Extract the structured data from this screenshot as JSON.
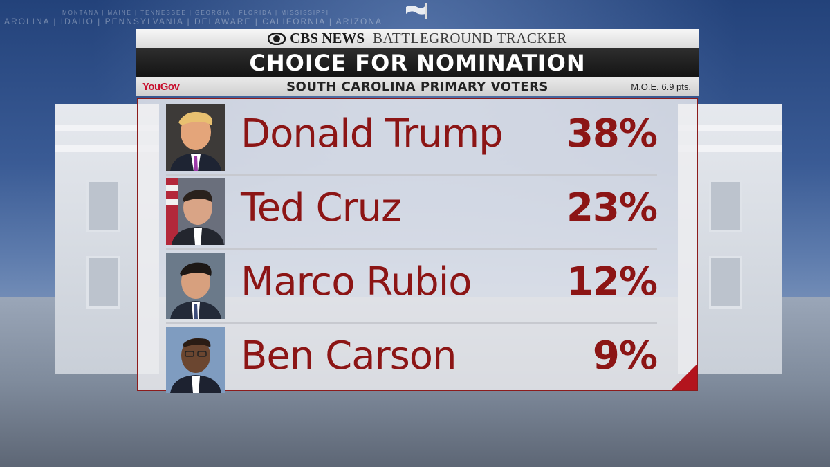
{
  "background": {
    "ticker_line1": "MONTANA | MAINE | TENNESSEE | GEORGIA | FLORIDA | MISSISSIPPI",
    "ticker_line2": "AROLINA | IDAHO | PENNSYLVANIA | DELAWARE | CALIFORNIA | ARIZONA"
  },
  "header": {
    "network": "CBS NEWS",
    "tracker": "BATTLEGROUND TRACKER",
    "title": "CHOICE FOR NOMINATION",
    "pollster": "YouGov",
    "subtitle": "SOUTH CAROLINA PRIMARY VOTERS",
    "moe": "M.O.E. 6.9 pts."
  },
  "colors": {
    "accent": "#8c1515",
    "title_bar": "#1a1a1a",
    "yougov": "#c8102e"
  },
  "chart_data": {
    "type": "table",
    "title": "CHOICE FOR NOMINATION",
    "subtitle": "SOUTH CAROLINA PRIMARY VOTERS",
    "categories": [
      "Donald Trump",
      "Ted Cruz",
      "Marco Rubio",
      "Ben Carson"
    ],
    "values": [
      38,
      23,
      12,
      9
    ],
    "labels": [
      "38%",
      "23%",
      "12%",
      "9%"
    ],
    "unit": "%"
  },
  "candidates": [
    {
      "name": "Donald Trump",
      "pct": "38%",
      "icon": "candidate-photo"
    },
    {
      "name": "Ted Cruz",
      "pct": "23%",
      "icon": "candidate-photo"
    },
    {
      "name": "Marco Rubio",
      "pct": "12%",
      "icon": "candidate-photo"
    },
    {
      "name": "Ben Carson",
      "pct": "9%",
      "icon": "candidate-photo"
    }
  ]
}
